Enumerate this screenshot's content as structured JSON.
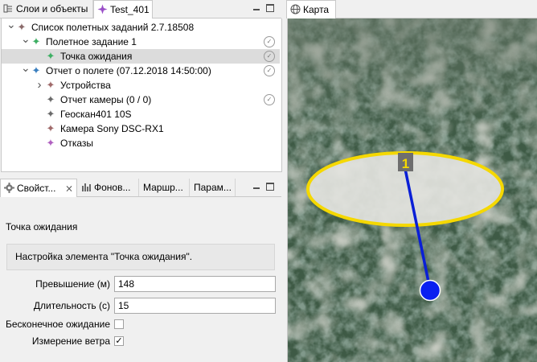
{
  "left_tabs": {
    "layers": "Слои и объекты",
    "test": "Test_401"
  },
  "tree": {
    "items": [
      {
        "label": "Список полетных заданий 2.7.18508",
        "color": "#8a6a6a",
        "expand": "v",
        "check": false
      },
      {
        "label": "Полетное задание 1",
        "color": "#3daf63",
        "expand": "v",
        "check": true
      },
      {
        "label": "Точка ожидания",
        "color": "#3daf63",
        "expand": "",
        "check": true,
        "selected": true
      },
      {
        "label": "Отчет о полете (07.12.2018 14:50:00)",
        "color": "#3a7fbf",
        "expand": "v",
        "check": true
      },
      {
        "label": "Устройства",
        "color": "#a06a6a",
        "expand": ">",
        "check": false
      },
      {
        "label": "Отчет камеры (0 / 0)",
        "color": "#6a6a6a",
        "expand": "",
        "check": true
      },
      {
        "label": "Геоскан401 10S",
        "color": "#6a6a6a",
        "expand": "",
        "check": false
      },
      {
        "label": "Камера Sony DSC-RX1",
        "color": "#a06a6a",
        "expand": "",
        "check": false
      },
      {
        "label": "Отказы",
        "color": "#b060c0",
        "expand": "",
        "check": false
      }
    ]
  },
  "prop_tabs": {
    "props": "Свойст...",
    "background": "Фонов...",
    "routes": "Маршр...",
    "params": "Парам..."
  },
  "props": {
    "title": "Точка ожидания",
    "description": "Настройка элемента \"Точка ожидания\".",
    "altitude_label": "Превышение (м)",
    "altitude_value": "148",
    "duration_label": "Длительность (с)",
    "duration_value": "15",
    "infinite_label": "Бесконечное ожидание",
    "infinite_checked": false,
    "wind_label": "Измерение ветра",
    "wind_checked": true,
    "wind_mark": "✓"
  },
  "map": {
    "tab": "Карта",
    "marker_label": "1",
    "ellipse_color": "#f5d800",
    "line_color": "#0a1fd6"
  }
}
